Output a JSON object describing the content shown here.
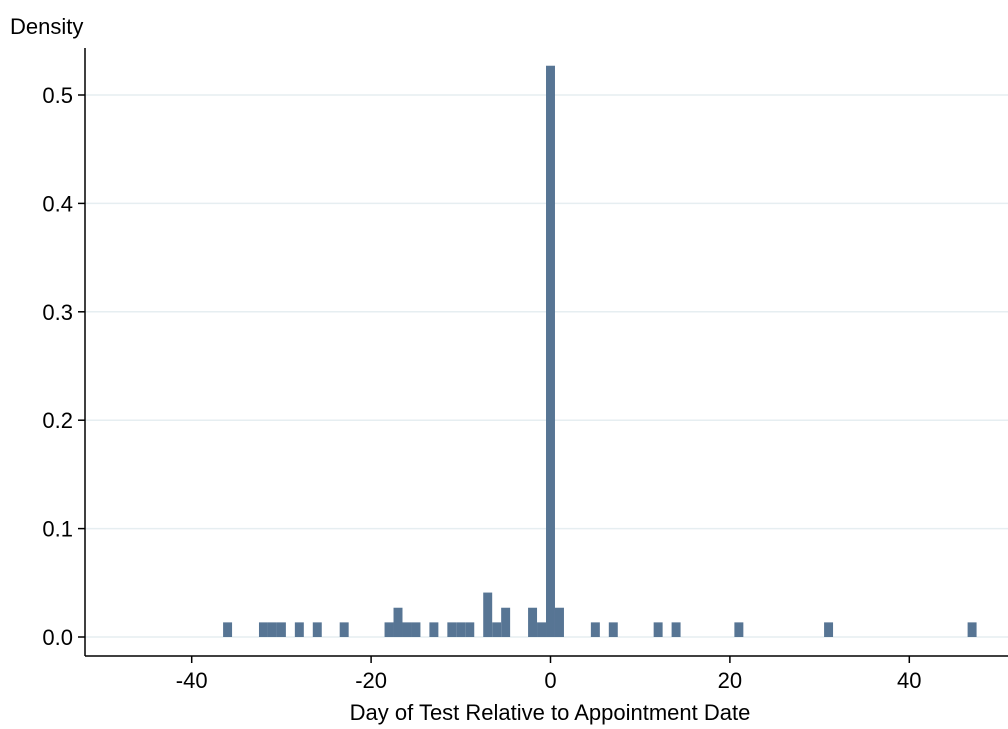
{
  "chart_data": {
    "type": "bar",
    "ylabel": "Density",
    "xlabel": "Day of Test Relative to Appointment Date",
    "xlim": [
      -51,
      51
    ],
    "ylim": [
      0,
      0.54
    ],
    "x_ticks": [
      -40,
      -20,
      0,
      20,
      40
    ],
    "x_tick_labels": [
      "-40",
      "-20",
      "0",
      "20",
      "40"
    ],
    "y_ticks": [
      0,
      0.1,
      0.2,
      0.3,
      0.4,
      0.5
    ],
    "y_tick_labels": [
      "0.0",
      "0.1",
      "0.2",
      "0.3",
      "0.4",
      "0.5"
    ],
    "grid": true,
    "bin_width": 1,
    "bar_color": "#577594",
    "grid_color": "#e6eef1",
    "bars": [
      {
        "x": -36,
        "y": 0.0135
      },
      {
        "x": -32,
        "y": 0.0135
      },
      {
        "x": -31,
        "y": 0.0135
      },
      {
        "x": -30,
        "y": 0.0135
      },
      {
        "x": -28,
        "y": 0.0135
      },
      {
        "x": -26,
        "y": 0.0135
      },
      {
        "x": -23,
        "y": 0.0135
      },
      {
        "x": -18,
        "y": 0.0135
      },
      {
        "x": -17,
        "y": 0.027
      },
      {
        "x": -16,
        "y": 0.0135
      },
      {
        "x": -15,
        "y": 0.0135
      },
      {
        "x": -13,
        "y": 0.0135
      },
      {
        "x": -11,
        "y": 0.0135
      },
      {
        "x": -10,
        "y": 0.0135
      },
      {
        "x": -9,
        "y": 0.0135
      },
      {
        "x": -7,
        "y": 0.041
      },
      {
        "x": -6,
        "y": 0.0135
      },
      {
        "x": -5,
        "y": 0.027
      },
      {
        "x": -2,
        "y": 0.027
      },
      {
        "x": -1,
        "y": 0.0135
      },
      {
        "x": 0,
        "y": 0.527
      },
      {
        "x": 1,
        "y": 0.027
      },
      {
        "x": 5,
        "y": 0.0135
      },
      {
        "x": 7,
        "y": 0.0135
      },
      {
        "x": 12,
        "y": 0.0135
      },
      {
        "x": 14,
        "y": 0.0135
      },
      {
        "x": 21,
        "y": 0.0135
      },
      {
        "x": 31,
        "y": 0.0135
      },
      {
        "x": 47,
        "y": 0.0135
      }
    ]
  }
}
